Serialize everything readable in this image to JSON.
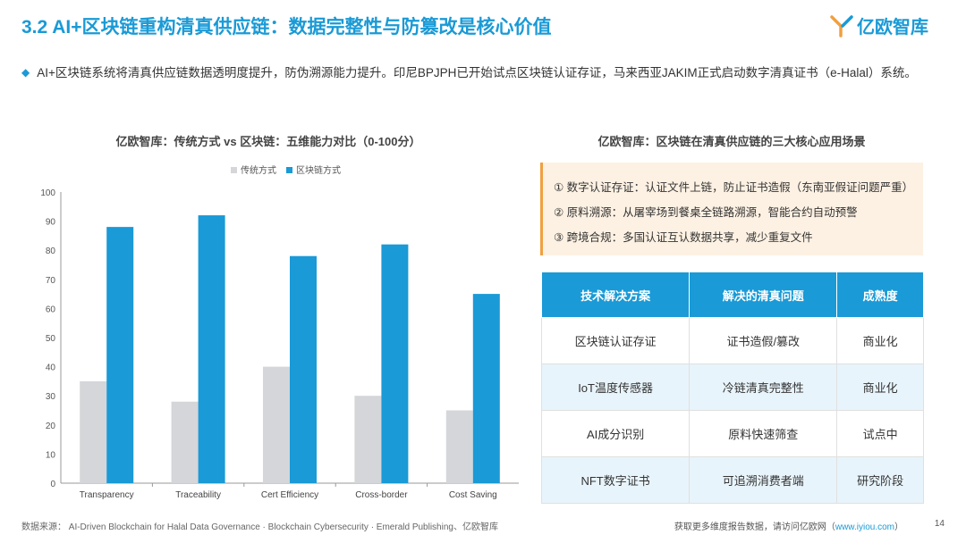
{
  "title": "3.2 AI+区块链重构清真供应链：数据完整性与防篡改是核心价值",
  "logo": {
    "text": "亿欧智库"
  },
  "bullet": "AI+区块链系统将清真供应链数据透明度提升，防伪溯源能力提升。印尼BPJPH已开始试点区块链认证存证，马来西亚JAKIM正式启动数字清真证书（e-Halal）系统。",
  "chart_data": {
    "type": "bar",
    "title": "亿欧智库：传统方式 vs 区块链：五维能力对比（0-100分）",
    "categories": [
      "Transparency",
      "Traceability",
      "Cert Efficiency",
      "Cross-border",
      "Cost Saving"
    ],
    "series": [
      {
        "name": "传统方式",
        "values": [
          35,
          28,
          40,
          30,
          25
        ],
        "color": "#d4d6d9"
      },
      {
        "name": "区块链方式",
        "values": [
          88,
          92,
          78,
          82,
          65
        ],
        "color": "#1a9ad6"
      }
    ],
    "ylim": [
      0,
      100
    ],
    "yticks": [
      0,
      10,
      20,
      30,
      40,
      50,
      60,
      70,
      80,
      90,
      100
    ],
    "xlabel": "",
    "ylabel": "",
    "legend": "top-center"
  },
  "right_panel": {
    "title": "亿欧智库：区块链在清真供应链的三大核心应用场景",
    "scenarios": [
      "① 数字认证存证：认证文件上链，防止证书造假（东南亚假证问题严重）",
      "② 原料溯源：从屠宰场到餐桌全链路溯源，智能合约自动预警",
      "③ 跨境合规：多国认证互认数据共享，减少重复文件"
    ],
    "table": {
      "headers": [
        "技术解决方案",
        "解决的清真问题",
        "成熟度"
      ],
      "rows": [
        [
          "区块链认证存证",
          "证书造假/篡改",
          "商业化"
        ],
        [
          "IoT温度传感器",
          "冷链清真完整性",
          "商业化"
        ],
        [
          "AI成分识别",
          "原料快速筛查",
          "试点中"
        ],
        [
          "NFT数字证书",
          "可追溯消费者端",
          "研究阶段"
        ]
      ]
    }
  },
  "footer": {
    "source": "数据来源： AI-Driven Blockchain for Halal Data Governance · Blockchain Cybersecurity · Emerald Publishing、亿欧智库",
    "more_prefix": "获取更多维度报告数据，请访问亿欧网（",
    "link": "www.iyiou.com",
    "more_suffix": "）",
    "page": "14"
  }
}
